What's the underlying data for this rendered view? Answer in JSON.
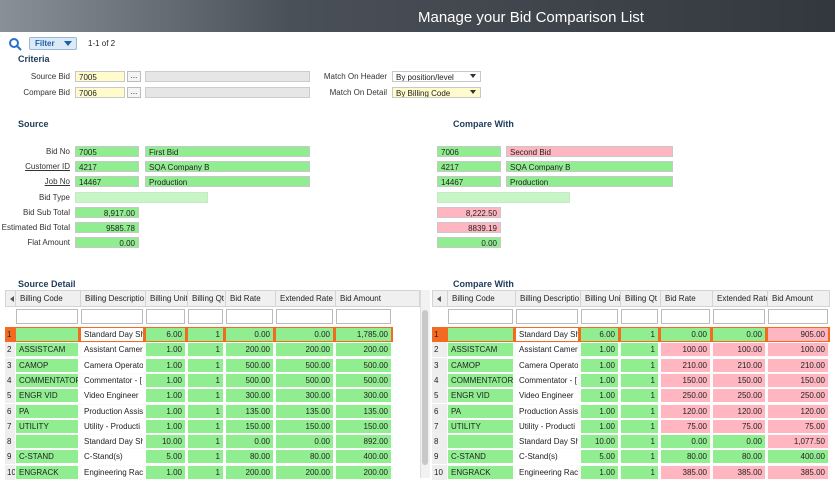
{
  "header": {
    "title": "Manage your Bid Comparison List"
  },
  "toolbar": {
    "filter": "Filter",
    "pager": "1-1 of 2"
  },
  "criteria": {
    "title": "Criteria",
    "button": "...",
    "fields": [
      {
        "label": "Source Bid",
        "value": "7005"
      },
      {
        "label": "Compare Bid",
        "value": "7006"
      }
    ],
    "match": [
      {
        "label": "Match On Header",
        "value": "By position/level"
      },
      {
        "label": "Match On Detail",
        "value": "By Billing Code"
      }
    ]
  },
  "summary": {
    "labels": [
      "Bid No",
      "Customer ID",
      "Job No",
      "Bid Type",
      "Bid Sub Total",
      "Estimated Bid Total",
      "Flat Amount"
    ],
    "source": {
      "title": "Source",
      "ids": [
        "7005",
        "4217",
        "14467"
      ],
      "names": [
        "First Bid",
        "SQA Company B",
        "Production"
      ],
      "totals": [
        "8,917.00",
        "9585.78",
        "0.00"
      ]
    },
    "compare": {
      "title": "Compare With",
      "ids": [
        "7006",
        "4217",
        "14467"
      ],
      "names": [
        "Second Bid",
        "SQA Company B",
        "Production"
      ],
      "totals": [
        "8,222.50",
        "8839.19",
        "0.00"
      ]
    }
  },
  "detail": {
    "columns": [
      "Billing Code",
      "Billing Descriptio",
      "Billing Unit",
      "Billing Qt",
      "Bid Rate",
      "Extended Rate",
      "Bid Amount"
    ],
    "source": {
      "title": "Source Detail",
      "rows": [
        [
          "1",
          null,
          "Standard Day Sh",
          "6.00",
          "1",
          "0.00",
          "0.00",
          "1,785.00"
        ],
        [
          "2",
          "ASSISTCAM",
          "Assistant Camer",
          "1.00",
          "1",
          "200.00",
          "200.00",
          "200.00"
        ],
        [
          "3",
          "CAMOP",
          "Camera Operato",
          "1.00",
          "1",
          "500.00",
          "500.00",
          "500.00"
        ],
        [
          "4",
          "COMMENTATOR",
          "Commentator - [",
          "1.00",
          "1",
          "500.00",
          "500.00",
          "500.00"
        ],
        [
          "5",
          "ENGR VID",
          "Video Engineer",
          "1.00",
          "1",
          "300.00",
          "300.00",
          "300.00"
        ],
        [
          "6",
          "PA",
          "Production Assis",
          "1.00",
          "1",
          "135.00",
          "135.00",
          "135.00"
        ],
        [
          "7",
          "UTILITY",
          "Utility - Producti",
          "1.00",
          "1",
          "150.00",
          "150.00",
          "150.00"
        ],
        [
          "8",
          null,
          "Standard Day Sh",
          "10.00",
          "1",
          "0.00",
          "0.00",
          "892.00"
        ],
        [
          "9",
          "C-STAND",
          "C-Stand(s)",
          "5.00",
          "1",
          "80.00",
          "80.00",
          "400.00"
        ],
        [
          "10",
          "ENGRACK",
          "Engineering Rac",
          "1.00",
          "1",
          "200.00",
          "200.00",
          "200.00"
        ]
      ]
    },
    "compare": {
      "title": "Compare With",
      "rows": [
        [
          "1",
          null,
          "Standard Day Sh",
          "6.00",
          "1",
          "0.00",
          "0.00",
          "905.00"
        ],
        [
          "2",
          "ASSISTCAM",
          "Assistant Camer",
          "1.00",
          "1",
          "100.00",
          "100.00",
          "100.00"
        ],
        [
          "3",
          "CAMOP",
          "Camera Operato",
          "1.00",
          "1",
          "210.00",
          "210.00",
          "210.00"
        ],
        [
          "4",
          "COMMENTATOR",
          "Commentator - [",
          "1.00",
          "1",
          "150.00",
          "150.00",
          "150.00"
        ],
        [
          "5",
          "ENGR VID",
          "Video Engineer",
          "1.00",
          "1",
          "250.00",
          "250.00",
          "250.00"
        ],
        [
          "6",
          "PA",
          "Production Assis",
          "1.00",
          "1",
          "120.00",
          "120.00",
          "120.00"
        ],
        [
          "7",
          "UTILITY",
          "Utility - Producti",
          "1.00",
          "1",
          "75.00",
          "75.00",
          "75.00"
        ],
        [
          "8",
          null,
          "Standard Day Sh",
          "10.00",
          "1",
          "0.00",
          "0.00",
          "1,077.50"
        ],
        [
          "9",
          "C-STAND",
          "C-Stand(s)",
          "5.00",
          "1",
          "80.00",
          "80.00",
          "400.00"
        ],
        [
          "10",
          "ENGRACK",
          "Engineering Rac",
          "1.00",
          "1",
          "385.00",
          "385.00",
          "385.00"
        ]
      ]
    }
  }
}
